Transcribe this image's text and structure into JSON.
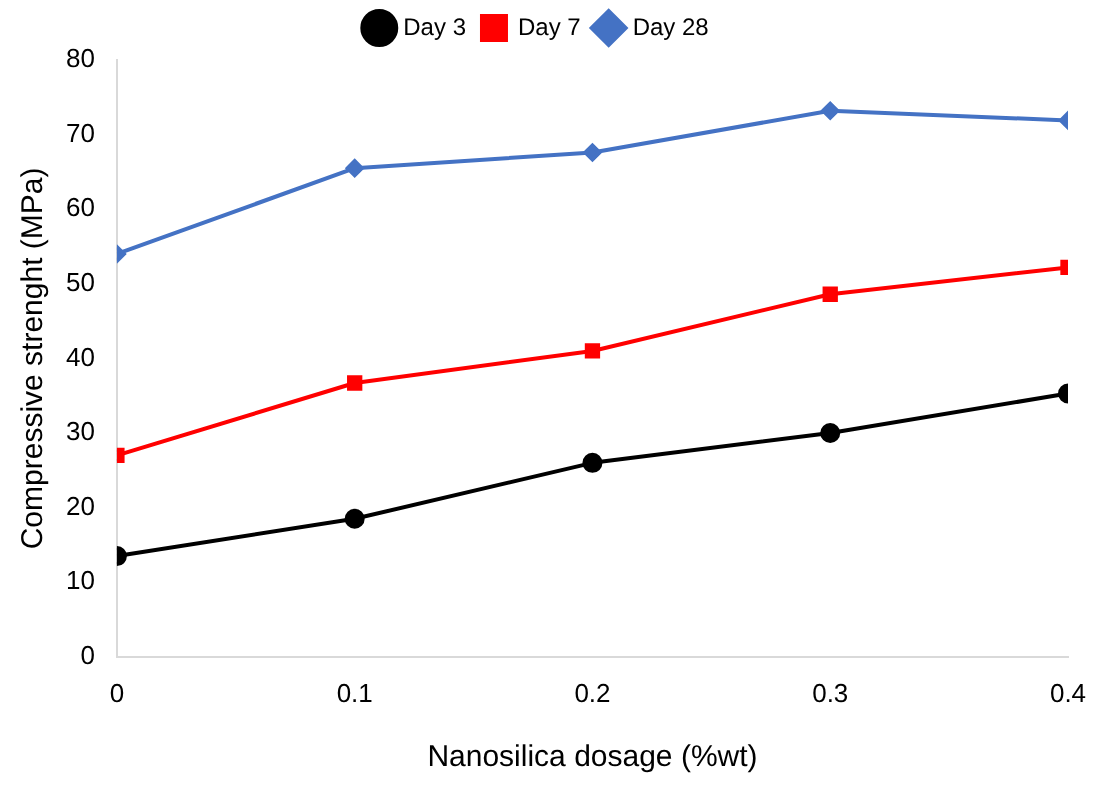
{
  "chart_data": {
    "type": "line",
    "xlabel": "Nanosilica dosage (%wt)",
    "ylabel": "Compressive strenght (MPa)",
    "x": [
      0,
      0.1,
      0.2,
      0.3,
      0.4
    ],
    "xlim": [
      0,
      0.4
    ],
    "xticks": [
      0,
      0.1,
      0.2,
      0.3,
      0.4
    ],
    "ylim": [
      0,
      80
    ],
    "yticks": [
      0,
      10,
      20,
      30,
      40,
      50,
      60,
      70,
      80
    ],
    "legend": "top",
    "line_style": "solid",
    "series": [
      {
        "name": "Day 3",
        "color": "#000000",
        "marker": "circle",
        "values": [
          13.5,
          18.5,
          26,
          30,
          35.3
        ]
      },
      {
        "name": "Day 7",
        "color": "#ff0000",
        "marker": "square",
        "values": [
          27,
          36.7,
          41,
          48.6,
          52.2
        ]
      },
      {
        "name": "Day 28",
        "color": "#4472c4",
        "marker": "diamond",
        "values": [
          54,
          65.5,
          67.6,
          73.2,
          71.9
        ]
      }
    ]
  }
}
